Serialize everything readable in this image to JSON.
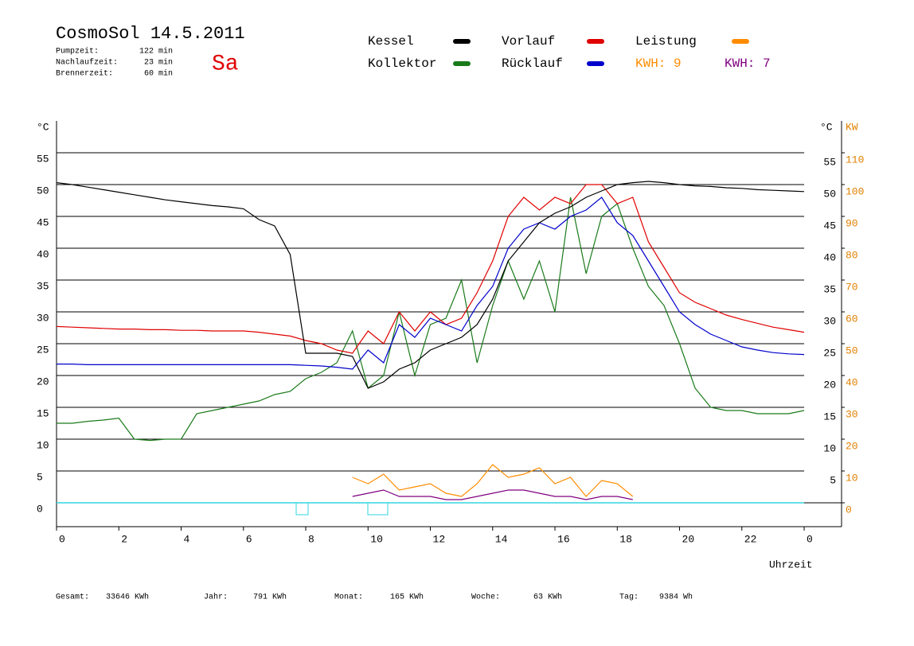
{
  "header": {
    "title": "CosmoSol 14.5.2011",
    "day": "Sa",
    "stats": [
      {
        "label": "Pumpzeit:",
        "value": "122 min"
      },
      {
        "label": "Nachlaufzeit:",
        "value": "23 min"
      },
      {
        "label": "Brennerzeit:",
        "value": "60 min"
      }
    ]
  },
  "chart_data": {
    "type": "line",
    "xlabel": "Uhrzeit",
    "ylabel": "°C",
    "y2label": "KW",
    "x": [
      0,
      0.5,
      1,
      1.5,
      2,
      2.5,
      3,
      3.5,
      4,
      4.5,
      5,
      5.5,
      6,
      6.5,
      7,
      7.5,
      8,
      8.5,
      9,
      9.5,
      10,
      10.5,
      11,
      11.5,
      12,
      12.5,
      13,
      13.5,
      14,
      14.5,
      15,
      15.5,
      16,
      16.5,
      17,
      17.5,
      18,
      18.5,
      19,
      19.5,
      20,
      20.5,
      21,
      21.5,
      22,
      22.5,
      23,
      23.5,
      24
    ],
    "xlim": [
      0,
      25.2
    ],
    "xticks": [
      0,
      2,
      4,
      6,
      8,
      10,
      12,
      14,
      16,
      18,
      20,
      22,
      {
        "value": 24,
        "label": "0"
      }
    ],
    "ylim": [
      -3.75,
      60
    ],
    "yticks": [
      0,
      5,
      10,
      15,
      20,
      25,
      30,
      35,
      40,
      45,
      50,
      55
    ],
    "y2lim": [
      -7.5,
      120
    ],
    "y2ticks": [
      0,
      10,
      20,
      30,
      40,
      50,
      60,
      70,
      80,
      90,
      100,
      110
    ],
    "grid": true,
    "series": [
      {
        "name": "Kessel",
        "color": "#000000",
        "values": [
          50.3,
          50,
          49.6,
          49.2,
          48.8,
          48.4,
          48,
          47.6,
          47.3,
          47,
          46.7,
          46.5,
          46.2,
          44.5,
          43.5,
          39,
          23.5,
          23.5,
          23.5,
          23,
          18,
          19,
          21,
          22,
          24,
          25,
          26,
          28,
          32,
          38,
          41,
          44,
          45.5,
          46.5,
          48,
          49,
          50,
          50.3,
          50.5,
          50.3,
          50,
          49.8,
          49.7,
          49.5,
          49.4,
          49.2,
          49.1,
          49,
          48.9
        ]
      },
      {
        "name": "Kollektor",
        "color": "#1a7a1a",
        "values": [
          12.5,
          12.5,
          12.8,
          13,
          13.3,
          10,
          9.8,
          10,
          10,
          14,
          14.5,
          15,
          15.5,
          16,
          17,
          17.5,
          19.5,
          20.5,
          22,
          27,
          18,
          20,
          30,
          20,
          28,
          29,
          35,
          22,
          31,
          38,
          32,
          38,
          30,
          48,
          36,
          45,
          47,
          40,
          34,
          31,
          25,
          18,
          15,
          14.5,
          14.5,
          14,
          14,
          14,
          14.5
        ]
      },
      {
        "name": "Vorlauf",
        "color": "#e00000",
        "values": [
          27.7,
          27.6,
          27.5,
          27.4,
          27.3,
          27.3,
          27.2,
          27.2,
          27.1,
          27.1,
          27,
          27,
          27,
          26.8,
          26.5,
          26.2,
          25.5,
          25,
          24,
          23.5,
          27,
          25,
          30,
          27,
          30,
          28,
          29,
          33,
          38,
          45,
          48,
          46,
          48,
          47,
          50,
          50,
          47,
          48,
          41,
          37,
          33,
          31.5,
          30.5,
          29.5,
          28.8,
          28.2,
          27.6,
          27.2,
          26.8
        ]
      },
      {
        "name": "Rücklauf",
        "color": "#0000cc",
        "values": [
          21.8,
          21.8,
          21.7,
          21.7,
          21.7,
          21.7,
          21.7,
          21.7,
          21.7,
          21.7,
          21.7,
          21.7,
          21.7,
          21.7,
          21.7,
          21.7,
          21.6,
          21.5,
          21.3,
          21,
          24,
          22,
          28,
          26,
          29,
          28,
          27,
          31,
          34,
          40,
          43,
          44,
          43,
          45,
          46,
          48,
          44,
          42,
          38,
          34,
          30,
          28,
          26.5,
          25.5,
          24.5,
          24,
          23.6,
          23.4,
          23.3
        ]
      },
      {
        "name": "Leistung",
        "kwh": "KWH: 9",
        "color": "#ff8c00",
        "axis": "y2",
        "values": [
          null,
          null,
          null,
          null,
          null,
          null,
          null,
          null,
          null,
          null,
          null,
          null,
          null,
          null,
          null,
          null,
          null,
          null,
          null,
          8,
          6,
          9,
          4,
          5,
          6,
          3,
          2,
          6,
          12,
          8,
          9,
          11,
          6,
          8,
          2,
          7,
          6,
          2,
          null,
          null,
          null,
          null,
          null,
          null,
          null,
          null,
          null,
          null,
          null
        ]
      },
      {
        "name": "KWH: 7",
        "color": "#800080",
        "axis": "y2",
        "values": [
          null,
          null,
          null,
          null,
          null,
          null,
          null,
          null,
          null,
          null,
          null,
          null,
          null,
          null,
          null,
          null,
          null,
          null,
          null,
          2,
          3,
          4,
          2,
          2,
          2,
          1,
          1,
          2,
          3,
          4,
          4,
          3,
          2,
          2,
          1,
          2,
          2,
          1,
          null,
          null,
          null,
          null,
          null,
          null,
          null,
          null,
          null,
          null,
          null
        ]
      }
    ]
  },
  "footer": [
    {
      "label": "Gesamt:",
      "value": "33646 KWh"
    },
    {
      "label": "Jahr:",
      "value": "791 KWh"
    },
    {
      "label": "Monat:",
      "value": "165 KWh"
    },
    {
      "label": "Woche:",
      "value": "63 KWh"
    },
    {
      "label": "Tag:",
      "value": "9384 Wh"
    }
  ]
}
